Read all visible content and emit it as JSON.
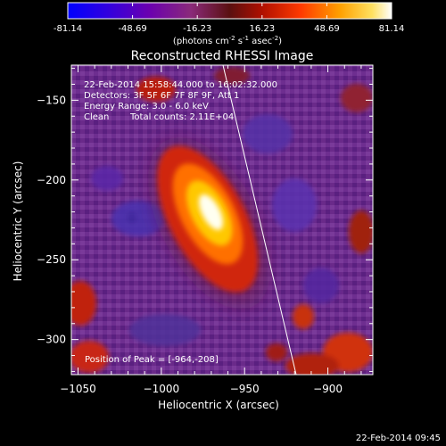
{
  "colorbar": {
    "ticks": [
      "-81.14",
      "-48.69",
      "-16.23",
      "16.23",
      "48.69",
      "81.14"
    ],
    "tick_values": [
      -81.14,
      -48.69,
      -16.23,
      16.23,
      48.69,
      81.14
    ],
    "range": [
      -81.14,
      81.14
    ],
    "unit_label": "(photons cm",
    "unit_sup1": "-2",
    "unit_mid": " s",
    "unit_sup2": "-1",
    "unit_mid2": " asec",
    "unit_sup3": "-2",
    "unit_end": ")",
    "colors": [
      "#1a1aff",
      "#5a00c8",
      "#8a2aa0",
      "#7a2a28",
      "#d02010",
      "#ff6a00",
      "#ffc000",
      "#ffffe0"
    ]
  },
  "plot": {
    "title": "Reconstructed RHESSI Image",
    "xlabel": "Heliocentric X (arcsec)",
    "ylabel": "Heliocentric Y (arcsec)",
    "x_ticks": [
      "−1050",
      "−1000",
      "−950",
      "−900"
    ],
    "x_tick_values": [
      -1050,
      -1000,
      -950,
      -900
    ],
    "y_ticks": [
      "−150",
      "−200",
      "−250",
      "−300"
    ],
    "y_tick_values": [
      -150,
      -200,
      -250,
      -300
    ],
    "xlim": [
      -1054,
      -873
    ],
    "ylim": [
      -322,
      -128
    ],
    "annotations": {
      "line1": "22-Feb-2014 15:58:44.000 to 16:02:32.000",
      "line2": "Detectors: 3F 5F 6F 7F 8F 9F, Att 1",
      "line3": "Energy Range: 3.0 - 6.0 keV",
      "line4_a": "Clean",
      "line4_b": "Total counts: 2.11E+04",
      "peak": "Position of Peak = [-964,-208]"
    },
    "peak_position": [
      -964,
      -208
    ]
  },
  "footer": {
    "timestamp": "22-Feb-2014 09:45"
  }
}
